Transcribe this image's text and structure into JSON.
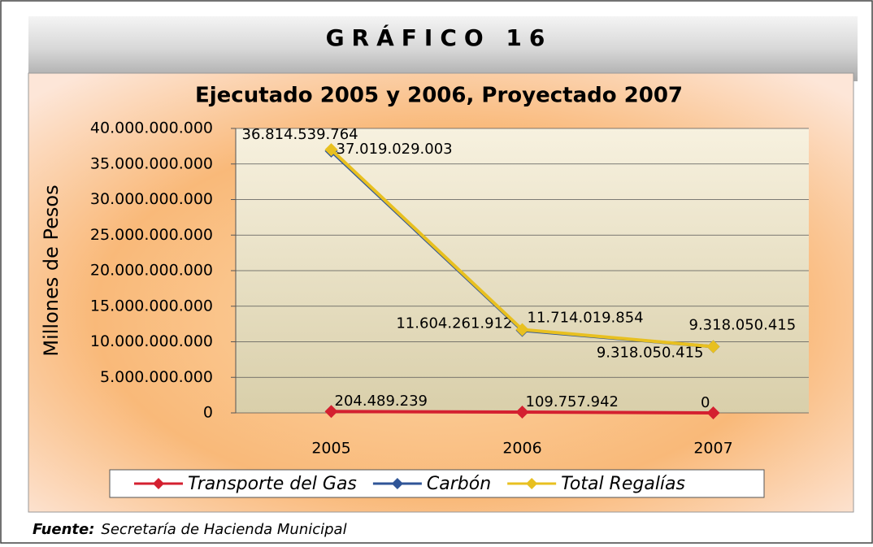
{
  "header": {
    "title": "GRÁFICO 16"
  },
  "chart_data": {
    "type": "line",
    "title": "Ejecutado 2005 y 2006,  Proyectado 2007",
    "y_label": "Millones de Pesos",
    "categories": [
      "2005",
      "2006",
      "2007"
    ],
    "series": [
      {
        "name": "Transporte del Gas",
        "color": "#d42030",
        "values": [
          204489239,
          109757942,
          0
        ],
        "value_labels": [
          "204.489.239",
          "109.757.942",
          "0"
        ]
      },
      {
        "name": "Carbón",
        "color": "#2f5597",
        "values": [
          36814539764,
          11604261912,
          9318050415
        ],
        "value_labels": [
          "36.814.539.764",
          "11.604.261.912",
          "9.318.050.415"
        ]
      },
      {
        "name": "Total Regalías",
        "color": "#e8c020",
        "values": [
          37019029003,
          11714019854,
          9318050415
        ],
        "value_labels": [
          "37.019.029.003",
          "11.714.019.854",
          "9.318.050.415"
        ]
      }
    ],
    "ylim": [
      0,
      40000000000
    ],
    "yticks": [
      0,
      {
        "value": 5000000000,
        "label": "5.000.000.000"
      },
      {
        "value": 10000000000,
        "label": "10.000.000.000"
      },
      {
        "value": 15000000000,
        "label": "15.000.000.000"
      },
      {
        "value": 20000000000,
        "label": "20.000.000.000"
      },
      {
        "value": 25000000000,
        "label": "25.000.000.000"
      },
      {
        "value": 30000000000,
        "label": "30.000.000.000"
      },
      {
        "value": 35000000000,
        "label": "35.000.000.000"
      },
      {
        "value": 40000000000,
        "label": "40.000.000.000"
      }
    ],
    "grid": true,
    "legend": "bottom"
  },
  "footer": {
    "source_label": "Fuente:",
    "source": "Secretaría de Hacienda Municipal"
  }
}
